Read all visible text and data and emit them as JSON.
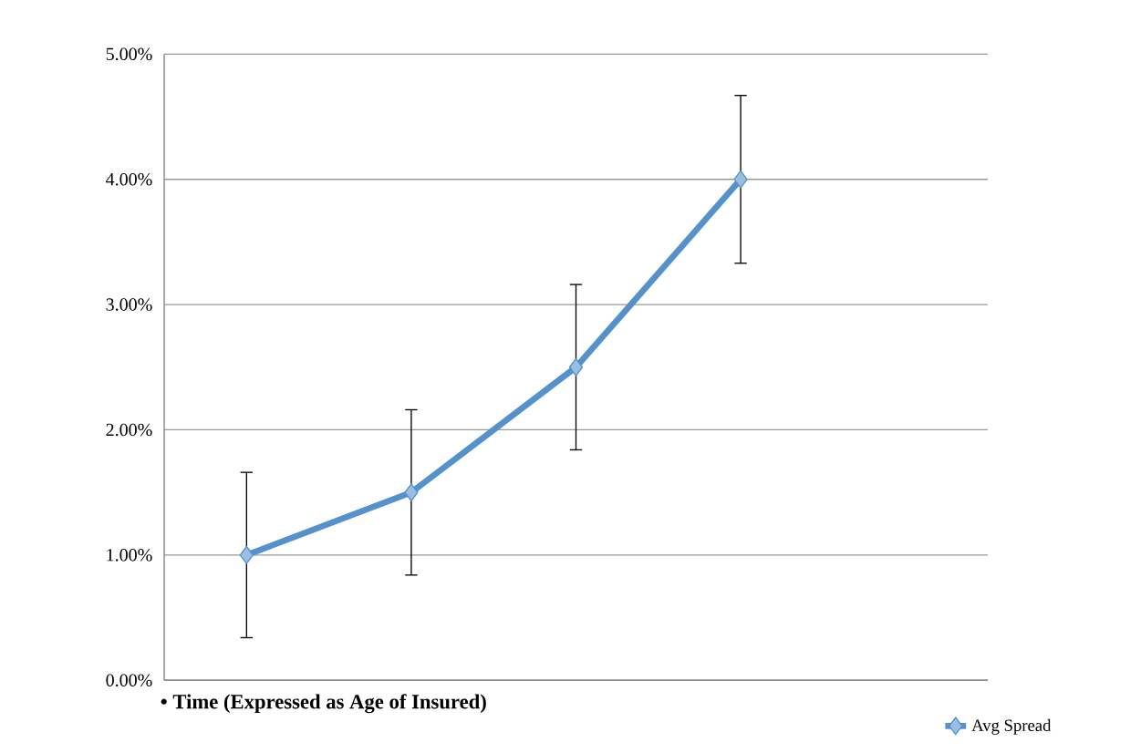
{
  "chart_data": {
    "type": "line",
    "xlabel": "• Time (Expressed as Age of Insured)",
    "categories": [
      null,
      null,
      null,
      null,
      null
    ],
    "series": [
      {
        "name": "Avg Spread",
        "color": "#5592cc",
        "values": [
          1.0,
          1.5,
          2.5,
          4.0,
          null
        ],
        "errors": [
          0.66,
          0.66,
          0.66,
          0.67,
          null
        ]
      }
    ],
    "ylim": [
      0,
      5
    ],
    "yticks": [
      {
        "value": 0,
        "label": "0.00%"
      },
      {
        "value": 1,
        "label": "1.00%"
      },
      {
        "value": 2,
        "label": "2.00%"
      },
      {
        "value": 3,
        "label": "3.00%"
      },
      {
        "value": 4,
        "label": "4.00%"
      },
      {
        "value": 5,
        "label": "5.00%"
      }
    ],
    "grid": "y",
    "legend": "bottom right",
    "tick_labels": "y",
    "marker": "diamond",
    "line_style": "solid"
  }
}
